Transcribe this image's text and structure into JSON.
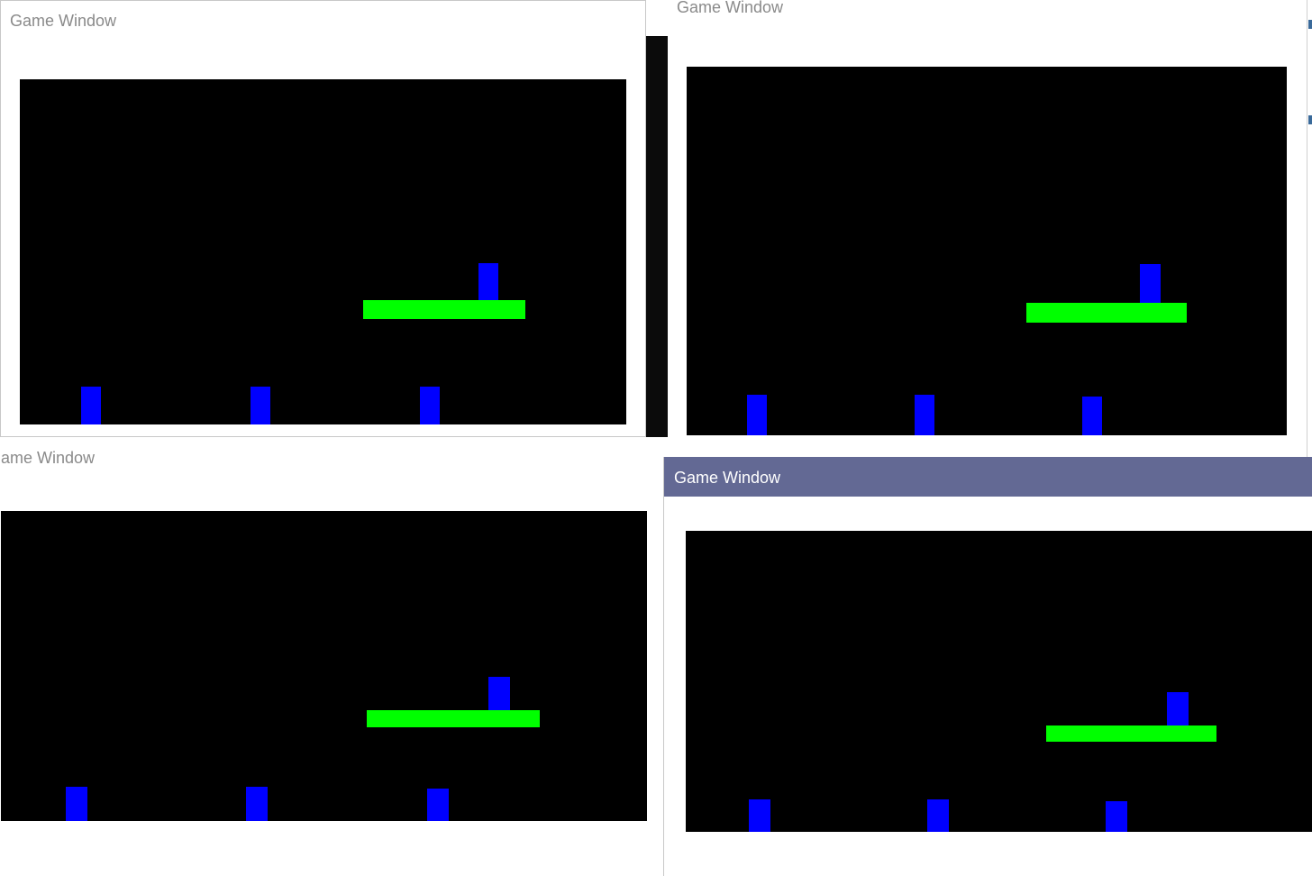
{
  "windows": [
    {
      "id": "top-left",
      "title": "Game Window",
      "active": false,
      "colors": {
        "player": "#0000ff",
        "obstacle": "#0000ff",
        "platform": "#00ff00",
        "background": "#000000"
      }
    },
    {
      "id": "top-right",
      "title": "Game Window",
      "active": false,
      "colors": {
        "player": "#0000ff",
        "obstacle": "#0000ff",
        "platform": "#00ff00",
        "background": "#000000"
      }
    },
    {
      "id": "bottom-left",
      "title": "Game Window",
      "active": false,
      "colors": {
        "player": "#0000ff",
        "obstacle": "#0000ff",
        "platform": "#00ff00",
        "background": "#000000"
      }
    },
    {
      "id": "bottom-right",
      "title": "Game Window",
      "active": true,
      "title_bar_color": "#636994",
      "colors": {
        "player": "#0000ff",
        "obstacle": "#0000ff",
        "platform": "#00ff00",
        "background": "#000000"
      }
    }
  ]
}
